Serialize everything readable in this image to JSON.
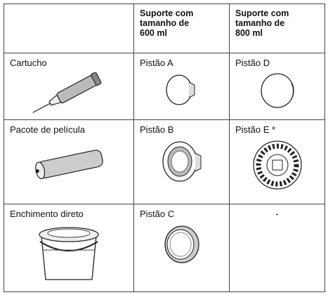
{
  "table": {
    "header": [
      "Suporte com tamanho de 600 ml",
      "Suporte com tamanho de 800 ml"
    ],
    "rows": [
      [
        "Cartucho",
        "Pistão A",
        "Pistão D"
      ],
      [
        "Pacote de película",
        "Pistão B",
        "Pistão E *"
      ],
      [
        "Enchimento direto",
        "Pistão C",
        "-"
      ]
    ]
  }
}
